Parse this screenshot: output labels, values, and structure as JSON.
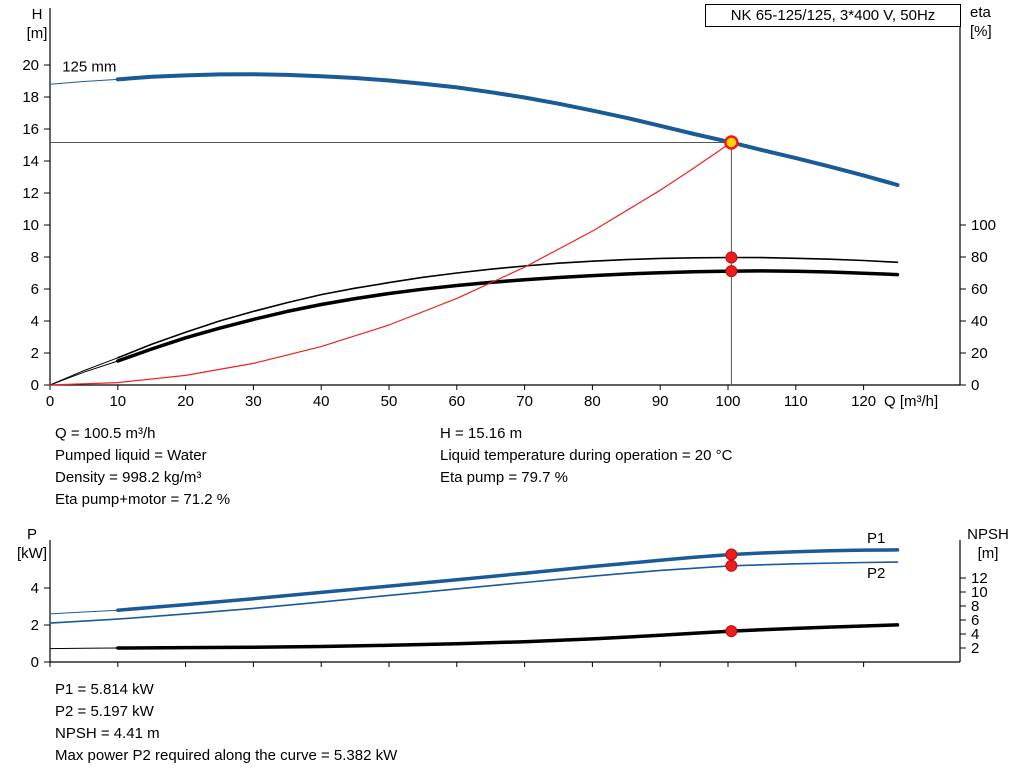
{
  "title_box": {
    "label": "NK 65-125/125, 3*400 V, 50Hz"
  },
  "axes_labels": {
    "h_line1": "H",
    "h_line2": "[m]",
    "eta_line1": "eta",
    "eta_line2": "[%]",
    "q": "Q [m³/h]",
    "p_line1": "P",
    "p_line2": "[kW]",
    "npsh_line1": "NPSH",
    "npsh_line2": "[m]"
  },
  "annotations": {
    "top_left": [
      "Q = 100.5 m³/h",
      "Pumped liquid = Water",
      "Density = 998.2 kg/m³",
      "Eta pump+motor = 71.2 %"
    ],
    "top_right": [
      "H = 15.16 m",
      "Liquid temperature during operation = 20 °C",
      "Eta pump = 79.7 %"
    ],
    "bottom": [
      "P1 = 5.814 kW",
      "P2 = 5.197 kW",
      "NPSH = 4.41 m",
      "Max power P2 required along the curve = 5.382 kW"
    ]
  },
  "colors": {
    "curve_blue": "#1a5a96",
    "curve_black": "#000000",
    "system_red": "#e8251f",
    "marker_yellow": "#ffd400",
    "marker_red": "#ee1c1c",
    "crosshair": "#555555"
  },
  "chart_data": [
    {
      "type": "line",
      "title": "NK 65-125/125, 3*400 V, 50Hz",
      "xlabel": "Q [m³/h]",
      "ylabel_left": "H [m]",
      "ylabel_right": "eta [%]",
      "xlim": [
        0,
        134
      ],
      "ylim_left": [
        0,
        20
      ],
      "ylim_right": [
        0,
        100
      ],
      "grid": false,
      "x_ticks": [
        0,
        10,
        20,
        30,
        40,
        50,
        60,
        70,
        80,
        90,
        100,
        110,
        120
      ],
      "y_ticks_left": [
        0,
        2,
        4,
        6,
        8,
        10,
        12,
        14,
        16,
        18,
        20
      ],
      "y_ticks_right": [
        0,
        20,
        40,
        60,
        80,
        100
      ],
      "series": [
        {
          "name": "pump-curve-lead",
          "axis": "left",
          "color": "#1a5a96",
          "width": 1,
          "points": [
            [
              0,
              18.8
            ],
            [
              5,
              18.97
            ],
            [
              10,
              19.1
            ]
          ]
        },
        {
          "name": "pump-curve-125mm",
          "axis": "left",
          "color": "#1a5a96",
          "width": 4,
          "points": [
            [
              10,
              19.1
            ],
            [
              15,
              19.27
            ],
            [
              20,
              19.35
            ],
            [
              25,
              19.41
            ],
            [
              30,
              19.42
            ],
            [
              35,
              19.38
            ],
            [
              40,
              19.3
            ],
            [
              45,
              19.19
            ],
            [
              50,
              19.03
            ],
            [
              55,
              18.83
            ],
            [
              60,
              18.6
            ],
            [
              65,
              18.3
            ],
            [
              70,
              17.97
            ],
            [
              75,
              17.58
            ],
            [
              80,
              17.15
            ],
            [
              85,
              16.7
            ],
            [
              90,
              16.2
            ],
            [
              95,
              15.69
            ],
            [
              100.5,
              15.16
            ],
            [
              105,
              14.68
            ],
            [
              110,
              14.18
            ],
            [
              115,
              13.65
            ],
            [
              120,
              13.1
            ],
            [
              125,
              12.5
            ]
          ]
        },
        {
          "name": "eta-pump-lead",
          "axis": "right",
          "color": "#000000",
          "width": 1,
          "points": [
            [
              0,
              0
            ],
            [
              5,
              9
            ],
            [
              10,
              17
            ]
          ]
        },
        {
          "name": "eta-pump-curve",
          "axis": "right",
          "color": "#000000",
          "width": 1.6,
          "points": [
            [
              10,
              17
            ],
            [
              15,
              25.5
            ],
            [
              20,
              33
            ],
            [
              25,
              40
            ],
            [
              30,
              46
            ],
            [
              35,
              51.5
            ],
            [
              40,
              56.5
            ],
            [
              45,
              60.5
            ],
            [
              50,
              64
            ],
            [
              55,
              67.3
            ],
            [
              60,
              70
            ],
            [
              65,
              72.4
            ],
            [
              70,
              74.4
            ],
            [
              75,
              76.1
            ],
            [
              80,
              77.4
            ],
            [
              85,
              78.4
            ],
            [
              90,
              79.1
            ],
            [
              95,
              79.5
            ],
            [
              100.5,
              79.7
            ],
            [
              105,
              79.6
            ],
            [
              110,
              79.2
            ],
            [
              115,
              78.6
            ],
            [
              120,
              77.8
            ],
            [
              125,
              76.7
            ]
          ]
        },
        {
          "name": "eta-pump-motor-lead",
          "axis": "right",
          "color": "#000000",
          "width": 1,
          "points": [
            [
              0,
              0
            ],
            [
              5,
              8
            ],
            [
              10,
              15
            ]
          ]
        },
        {
          "name": "eta-pump-motor-curve",
          "axis": "right",
          "color": "#000000",
          "width": 3.5,
          "points": [
            [
              10,
              15
            ],
            [
              15,
              22.5
            ],
            [
              20,
              29.5
            ],
            [
              25,
              35.5
            ],
            [
              30,
              41
            ],
            [
              35,
              46
            ],
            [
              40,
              50.3
            ],
            [
              45,
              54
            ],
            [
              50,
              57.2
            ],
            [
              55,
              59.9
            ],
            [
              60,
              62.2
            ],
            [
              65,
              64.1
            ],
            [
              70,
              65.8
            ],
            [
              75,
              67.2
            ],
            [
              80,
              68.4
            ],
            [
              85,
              69.4
            ],
            [
              90,
              70.2
            ],
            [
              95,
              70.8
            ],
            [
              100.5,
              71.2
            ],
            [
              105,
              71.3
            ],
            [
              110,
              71.1
            ],
            [
              115,
              70.6
            ],
            [
              120,
              69.9
            ],
            [
              125,
              69
            ]
          ]
        },
        {
          "name": "system-curve",
          "axis": "left",
          "color": "#e8251f",
          "width": 1.2,
          "points": [
            [
              0,
              0
            ],
            [
              10,
              0.15
            ],
            [
              20,
              0.6
            ],
            [
              30,
              1.35
            ],
            [
              40,
              2.4
            ],
            [
              50,
              3.75
            ],
            [
              60,
              5.41
            ],
            [
              70,
              7.36
            ],
            [
              80,
              9.62
            ],
            [
              90,
              12.17
            ],
            [
              95,
              13.57
            ],
            [
              100.5,
              15.16
            ]
          ]
        }
      ],
      "crosshair": {
        "q": 100.5,
        "h": 15.16
      },
      "markers": [
        {
          "q": 100.5,
          "v": 15.16,
          "axis": "left",
          "style": "duty"
        },
        {
          "q": 100.5,
          "v": 79.7,
          "axis": "right",
          "style": "dot"
        },
        {
          "q": 100.5,
          "v": 71.2,
          "axis": "right",
          "style": "dot"
        }
      ],
      "curve_labels": [
        {
          "text": "125 mm",
          "q": 1.8,
          "v": 19.6,
          "axis": "left",
          "color": "#000000"
        }
      ]
    },
    {
      "type": "line",
      "title": "",
      "xlabel": "",
      "ylabel_left": "P [kW]",
      "ylabel_right": "NPSH [m]",
      "xlim": [
        0,
        134
      ],
      "ylim_left": [
        0,
        6.6
      ],
      "ylim_right": [
        0,
        12
      ],
      "grid": false,
      "x_ticks": [
        0,
        10,
        20,
        30,
        40,
        50,
        60,
        70,
        80,
        90,
        100,
        110,
        120
      ],
      "y_ticks_left": [
        0,
        2,
        4
      ],
      "y_ticks_right": [
        2,
        4,
        6,
        8,
        10,
        12
      ],
      "series": [
        {
          "name": "p1-lead",
          "axis": "left",
          "color": "#1a5a96",
          "width": 1,
          "points": [
            [
              0,
              2.6
            ],
            [
              5,
              2.7
            ],
            [
              10,
              2.8
            ]
          ]
        },
        {
          "name": "p1-curve",
          "axis": "left",
          "color": "#1a5a96",
          "width": 3.5,
          "points": [
            [
              10,
              2.8
            ],
            [
              20,
              3.1
            ],
            [
              30,
              3.42
            ],
            [
              40,
              3.76
            ],
            [
              50,
              4.1
            ],
            [
              60,
              4.45
            ],
            [
              70,
              4.8
            ],
            [
              80,
              5.16
            ],
            [
              90,
              5.5
            ],
            [
              95,
              5.66
            ],
            [
              100.5,
              5.81
            ],
            [
              105,
              5.89
            ],
            [
              110,
              5.96
            ],
            [
              115,
              6.01
            ],
            [
              120,
              6.05
            ],
            [
              125,
              6.06
            ]
          ]
        },
        {
          "name": "p2-curve",
          "axis": "left",
          "color": "#1a5a96",
          "width": 1.6,
          "points": [
            [
              0,
              2.1
            ],
            [
              10,
              2.32
            ],
            [
              20,
              2.6
            ],
            [
              30,
              2.9
            ],
            [
              40,
              3.24
            ],
            [
              50,
              3.6
            ],
            [
              60,
              3.95
            ],
            [
              70,
              4.3
            ],
            [
              80,
              4.64
            ],
            [
              90,
              4.95
            ],
            [
              100.5,
              5.2
            ],
            [
              110,
              5.31
            ],
            [
              120,
              5.38
            ],
            [
              125,
              5.4
            ]
          ]
        },
        {
          "name": "npsh-lead",
          "axis": "right",
          "color": "#000000",
          "width": 1,
          "points": [
            [
              0,
              1.92
            ],
            [
              5,
              1.96
            ],
            [
              10,
              2.0
            ]
          ]
        },
        {
          "name": "npsh-curve",
          "axis": "right",
          "color": "#000000",
          "width": 3.5,
          "points": [
            [
              10,
              2.0
            ],
            [
              20,
              2.05
            ],
            [
              30,
              2.12
            ],
            [
              40,
              2.22
            ],
            [
              50,
              2.38
            ],
            [
              60,
              2.6
            ],
            [
              70,
              2.9
            ],
            [
              80,
              3.3
            ],
            [
              90,
              3.82
            ],
            [
              95,
              4.1
            ],
            [
              100.5,
              4.41
            ],
            [
              105,
              4.62
            ],
            [
              110,
              4.8
            ],
            [
              115,
              4.98
            ],
            [
              120,
              5.15
            ],
            [
              125,
              5.3
            ]
          ]
        }
      ],
      "markers": [
        {
          "q": 100.5,
          "v": 5.81,
          "axis": "left",
          "style": "dot"
        },
        {
          "q": 100.5,
          "v": 5.2,
          "axis": "left",
          "style": "dot"
        },
        {
          "q": 100.5,
          "v": 4.41,
          "axis": "right",
          "style": "dot"
        }
      ],
      "curve_labels": [
        {
          "text": "P1",
          "q": 120.5,
          "v": 6.43,
          "axis": "left",
          "color": "#1a5a96"
        },
        {
          "text": "P2",
          "q": 120.5,
          "v": 4.54,
          "axis": "left",
          "color": "#1a5a96"
        }
      ]
    }
  ]
}
